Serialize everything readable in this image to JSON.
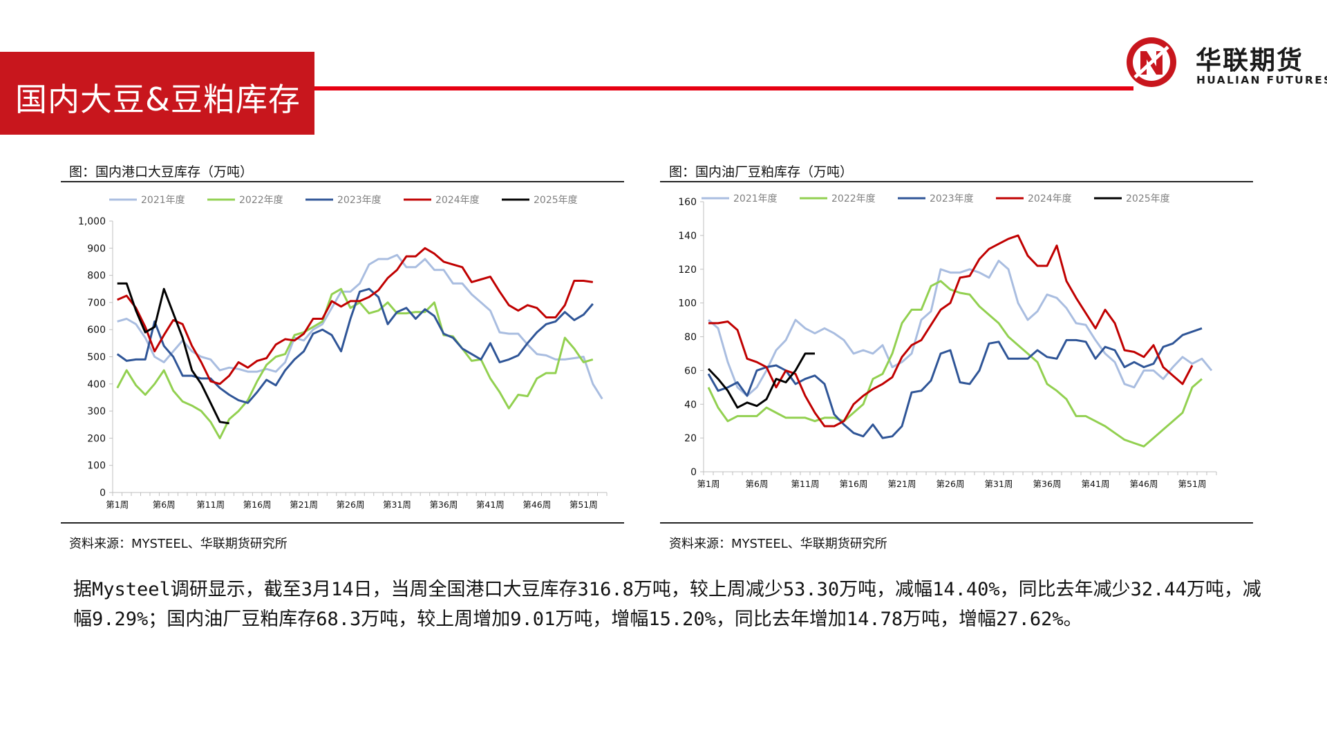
{
  "header": {
    "title": "国内大豆&豆粕库存",
    "brand_cn": "华联期货",
    "brand_en": "HUALIAN FUTURES",
    "brand_color": "#c8161d"
  },
  "chart_left": {
    "caption": "图：国内港口大豆库存（万吨）",
    "source": "资料来源：MYSTEEL、华联期货研究所"
  },
  "chart_right": {
    "caption": "图：国内油厂豆粕库存（万吨）",
    "source": "资料来源：MYSTEEL、华联期货研究所"
  },
  "paragraph": "据Mysteel调研显示，截至3月14日，当周全国港口大豆库存316.8万吨，较上周减少53.30万吨，减幅14.40%，同比去年减少32.44万吨，减幅9.29%；国内油厂豆粕库存68.3万吨，较上周增加9.01万吨，增幅15.20%，同比去年增加14.78万吨，增幅27.62%。",
  "chart_data": [
    {
      "type": "line",
      "title": "图：国内港口大豆库存（万吨）",
      "xlabel": "",
      "ylabel": "",
      "ylim": [
        0,
        1000
      ],
      "yticks": [
        0,
        100,
        200,
        300,
        400,
        500,
        600,
        700,
        800,
        900,
        1000
      ],
      "ytick_labels": [
        "0",
        "100",
        "200",
        "300",
        "400",
        "500",
        "600",
        "700",
        "800",
        "900",
        "1,000"
      ],
      "x_count": 53,
      "xtick_positions": [
        1,
        6,
        11,
        16,
        21,
        26,
        31,
        36,
        41,
        46,
        51
      ],
      "xtick_labels": [
        "第1周",
        "第6周",
        "第11周",
        "第16周",
        "第21周",
        "第26周",
        "第31周",
        "第36周",
        "第41周",
        "第46周",
        "第51周"
      ],
      "grid": false,
      "legend": "top",
      "series": [
        {
          "name": "2021年度",
          "color": "#a9bde0",
          "values": [
            630,
            640,
            620,
            570,
            500,
            480,
            520,
            560,
            520,
            500,
            490,
            450,
            460,
            455,
            445,
            445,
            455,
            445,
            480,
            570,
            560,
            600,
            620,
            680,
            740,
            740,
            770,
            840,
            860,
            860,
            875,
            830,
            830,
            860,
            820,
            820,
            770,
            770,
            730,
            700,
            670,
            590,
            585,
            585,
            545,
            510,
            505,
            490,
            490,
            495,
            500,
            400,
            345
          ]
        },
        {
          "name": "2022年度",
          "color": "#92d050",
          "values": [
            385,
            450,
            395,
            360,
            400,
            450,
            375,
            335,
            320,
            300,
            260,
            200,
            270,
            300,
            340,
            410,
            470,
            500,
            510,
            580,
            590,
            610,
            630,
            730,
            750,
            680,
            700,
            660,
            670,
            700,
            660,
            660,
            665,
            665,
            700,
            580,
            575,
            530,
            485,
            490,
            420,
            370,
            310,
            360,
            355,
            420,
            440,
            440,
            570,
            530,
            480,
            490
          ]
        },
        {
          "name": "2023年度",
          "color": "#2f5597",
          "values": [
            510,
            485,
            490,
            490,
            630,
            540,
            500,
            430,
            430,
            420,
            420,
            385,
            360,
            340,
            330,
            370,
            415,
            395,
            450,
            490,
            520,
            585,
            600,
            580,
            520,
            640,
            740,
            750,
            720,
            620,
            665,
            680,
            640,
            675,
            650,
            585,
            570,
            530,
            510,
            490,
            550,
            480,
            490,
            505,
            550,
            590,
            620,
            630,
            665,
            635,
            655,
            695
          ]
        },
        {
          "name": "2024年度",
          "color": "#c00000",
          "values": [
            710,
            725,
            680,
            610,
            520,
            580,
            635,
            620,
            540,
            480,
            410,
            400,
            430,
            480,
            460,
            485,
            495,
            545,
            565,
            560,
            585,
            640,
            640,
            705,
            685,
            705,
            705,
            720,
            745,
            790,
            820,
            870,
            870,
            900,
            880,
            850,
            840,
            830,
            775,
            785,
            795,
            740,
            690,
            670,
            690,
            680,
            645,
            645,
            690,
            780,
            780,
            775
          ]
        },
        {
          "name": "2025年度",
          "color": "#000000",
          "values": [
            770,
            770,
            670,
            590,
            610,
            750,
            660,
            570,
            450,
            400,
            330,
            260,
            255
          ]
        }
      ]
    },
    {
      "type": "line",
      "title": "图：国内油厂豆粕库存（万吨）",
      "xlabel": "",
      "ylabel": "",
      "ylim": [
        0,
        160
      ],
      "yticks": [
        0,
        20,
        40,
        60,
        80,
        100,
        120,
        140,
        160
      ],
      "ytick_labels": [
        "0",
        "20",
        "40",
        "60",
        "80",
        "100",
        "120",
        "140",
        "160"
      ],
      "x_count": 53,
      "xtick_positions": [
        1,
        6,
        11,
        16,
        21,
        26,
        31,
        36,
        41,
        46,
        51
      ],
      "xtick_labels": [
        "第1周",
        "第6周",
        "第11周",
        "第16周",
        "第21周",
        "第26周",
        "第31周",
        "第36周",
        "第41周",
        "第46周",
        "第51周"
      ],
      "grid": false,
      "legend": "top",
      "series": [
        {
          "name": "2021年度",
          "color": "#a9bde0",
          "values": [
            90,
            85,
            65,
            50,
            45,
            50,
            60,
            72,
            78,
            90,
            85,
            82,
            85,
            82,
            78,
            70,
            72,
            70,
            75,
            62,
            65,
            70,
            90,
            95,
            120,
            118,
            118,
            120,
            118,
            115,
            125,
            120,
            100,
            90,
            95,
            105,
            103,
            97,
            88,
            87,
            78,
            70,
            65,
            52,
            50,
            60,
            60,
            55,
            62,
            68,
            64,
            67,
            60
          ]
        },
        {
          "name": "2022年度",
          "color": "#92d050",
          "values": [
            50,
            38,
            30,
            33,
            33,
            33,
            38,
            35,
            32,
            32,
            32,
            30,
            32,
            32,
            30,
            35,
            40,
            55,
            58,
            70,
            88,
            96,
            96,
            110,
            113,
            108,
            106,
            105,
            98,
            93,
            88,
            80,
            75,
            70,
            65,
            52,
            48,
            43,
            33,
            33,
            30,
            27,
            23,
            19,
            17,
            15,
            20,
            25,
            30,
            35,
            50,
            55
          ]
        },
        {
          "name": "2023年度",
          "color": "#2f5597",
          "values": [
            58,
            48,
            50,
            53,
            45,
            60,
            62,
            63,
            60,
            52,
            55,
            57,
            52,
            34,
            28,
            23,
            21,
            28,
            20,
            21,
            27,
            47,
            48,
            54,
            70,
            72,
            53,
            52,
            60,
            76,
            77,
            67,
            67,
            67,
            72,
            68,
            67,
            78,
            78,
            77,
            67,
            74,
            72,
            62,
            65,
            62,
            64,
            74,
            76,
            81,
            83,
            85
          ]
        },
        {
          "name": "2024年度",
          "color": "#c00000",
          "values": [
            88,
            88,
            89,
            84,
            67,
            65,
            62,
            50,
            60,
            58,
            45,
            35,
            27,
            27,
            30,
            40,
            45,
            49,
            52,
            56,
            68,
            75,
            78,
            87,
            96,
            100,
            115,
            116,
            126,
            132,
            135,
            138,
            140,
            128,
            122,
            122,
            134,
            113,
            103,
            94,
            85,
            96,
            88,
            72,
            71,
            68,
            75,
            62,
            57,
            52,
            63
          ]
        },
        {
          "name": "2025年度",
          "color": "#000000",
          "values": [
            61,
            55,
            48,
            38,
            41,
            39,
            43,
            55,
            53,
            60,
            70,
            70
          ]
        }
      ]
    }
  ]
}
